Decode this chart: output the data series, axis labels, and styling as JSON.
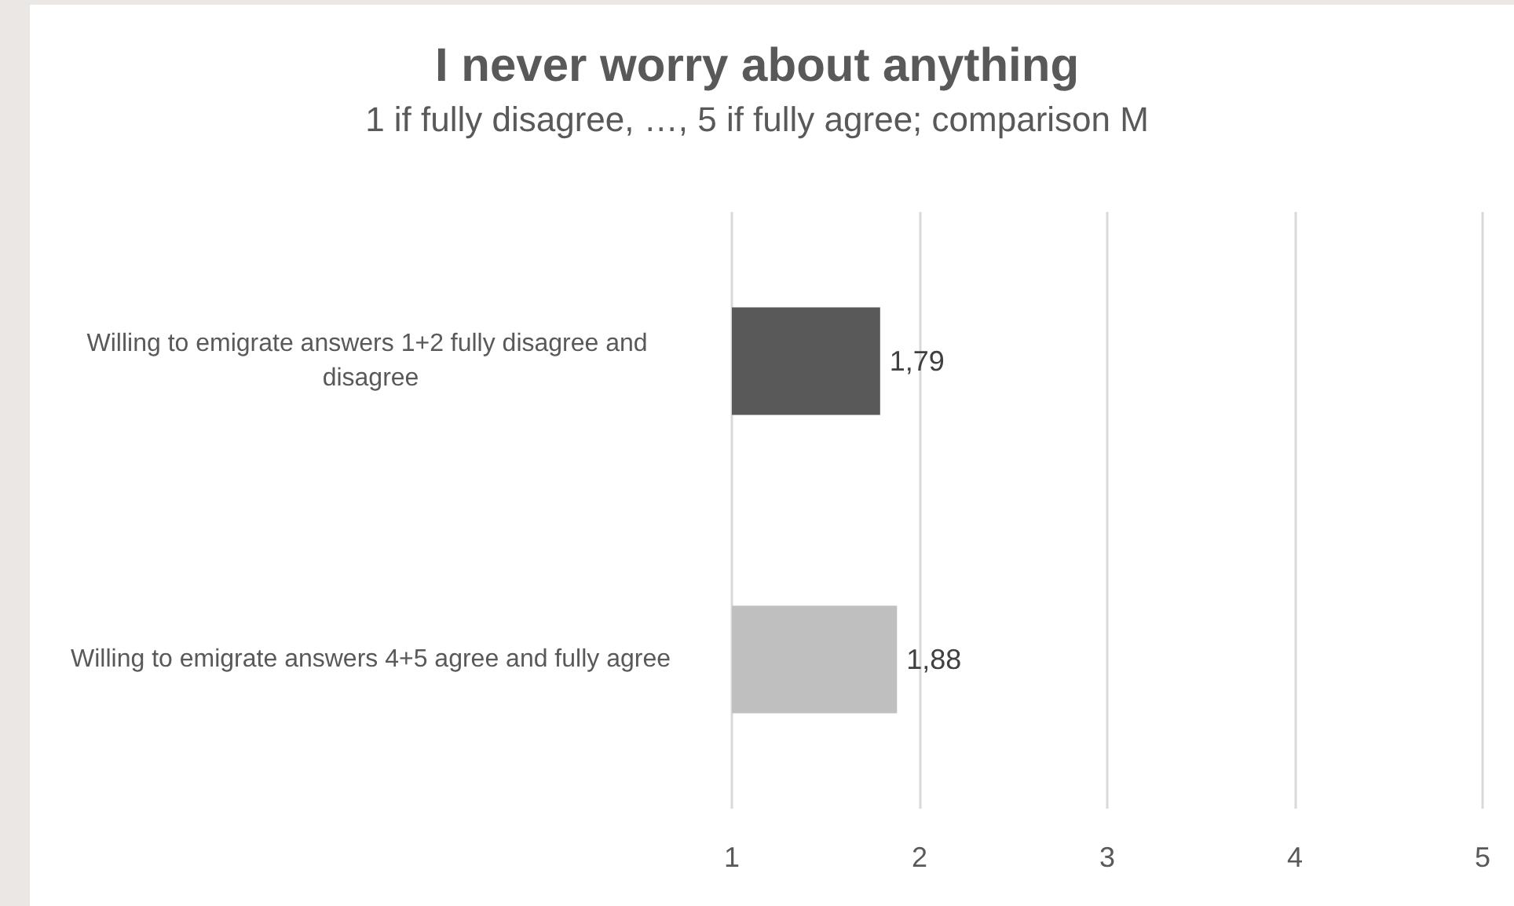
{
  "chart_data": {
    "type": "bar",
    "orientation": "horizontal",
    "title": "I never worry about anything",
    "subtitle": "1 if fully disagree, …, 5 if fully agree; comparison M",
    "categories": [
      "Willing to emigrate answers 1+2 fully disagree and disagree",
      "Willing to emigrate answers 4+5 agree and fully agree"
    ],
    "values": [
      1.79,
      1.88
    ],
    "colors": [
      "#595959",
      "#bfbfbf"
    ],
    "value_labels": [
      "1,79",
      "1,88"
    ],
    "xlim": [
      1,
      5
    ],
    "xticks": [
      1,
      2,
      3,
      4,
      5
    ],
    "grid": "x"
  }
}
